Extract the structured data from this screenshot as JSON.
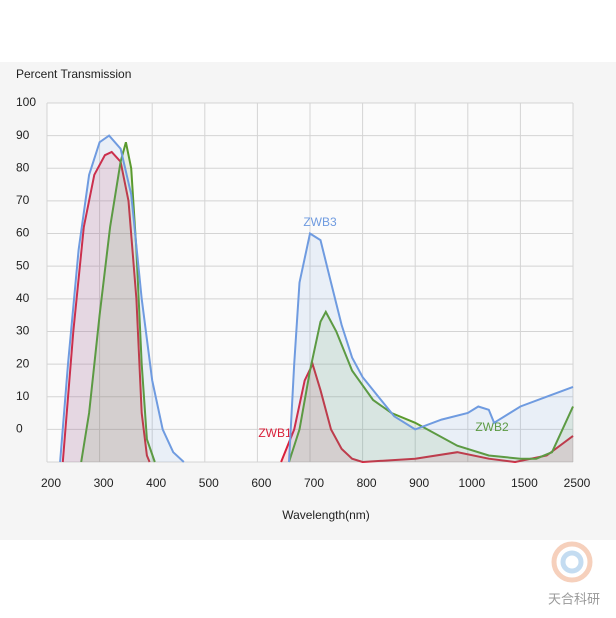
{
  "chart_data": {
    "type": "line",
    "title": "Percent Transmission",
    "x_label": "Wavelength(nm)",
    "watermark": "天合科研",
    "xlim": [
      200,
      2500
    ],
    "xticks": [
      200,
      300,
      400,
      500,
      600,
      700,
      800,
      900,
      1000,
      1500,
      2500
    ],
    "ylim": [
      -10,
      100
    ],
    "yticks": [
      0,
      10,
      20,
      30,
      40,
      50,
      60,
      70,
      80,
      90,
      100
    ],
    "grid": true,
    "series": [
      {
        "name": "ZWB1",
        "color": "#d9203a",
        "x": [
          230,
          250,
          270,
          290,
          310,
          323,
          340,
          355,
          370,
          380,
          390,
          395,
          550,
          645,
          670,
          690,
          705,
          720,
          740,
          760,
          780,
          800,
          900,
          980,
          1200,
          1450,
          2000,
          2500
        ],
        "values": [
          -10,
          30,
          62,
          78,
          84,
          85,
          82,
          70,
          40,
          5,
          -8,
          -10,
          null,
          -10,
          0,
          15,
          20,
          12,
          0,
          -6,
          -9,
          -10,
          -9,
          -7,
          -9,
          -10,
          -8,
          -2
        ]
      },
      {
        "name": "ZWB2",
        "color": "#5a9a2e",
        "x": [
          265,
          280,
          300,
          320,
          340,
          350,
          360,
          370,
          380,
          390,
          405,
          550,
          660,
          680,
          700,
          720,
          730,
          750,
          780,
          820,
          855,
          900,
          980,
          1200,
          1500,
          1800,
          2100,
          2500
        ],
        "values": [
          -10,
          5,
          35,
          62,
          82,
          88,
          80,
          55,
          20,
          -3,
          -10,
          null,
          -10,
          0,
          18,
          33,
          36,
          30,
          18,
          9,
          5,
          2,
          -5,
          -8,
          -9,
          -9,
          -7,
          7
        ]
      },
      {
        "name": "ZWB3",
        "color": "#6f9be0",
        "x": [
          225,
          240,
          260,
          280,
          300,
          318,
          340,
          360,
          380,
          400,
          420,
          440,
          460,
          550,
          660,
          670,
          680,
          700,
          720,
          740,
          760,
          780,
          800,
          830,
          860,
          900,
          950,
          1000,
          1100,
          1200,
          1250,
          1500,
          2000,
          2500
        ],
        "values": [
          -10,
          20,
          55,
          78,
          88,
          90,
          86,
          72,
          40,
          15,
          0,
          -7,
          -10,
          null,
          -10,
          20,
          45,
          60,
          58,
          45,
          32,
          22,
          16,
          10,
          4,
          0,
          3,
          5,
          7,
          6,
          2,
          7,
          10,
          13
        ]
      }
    ]
  }
}
